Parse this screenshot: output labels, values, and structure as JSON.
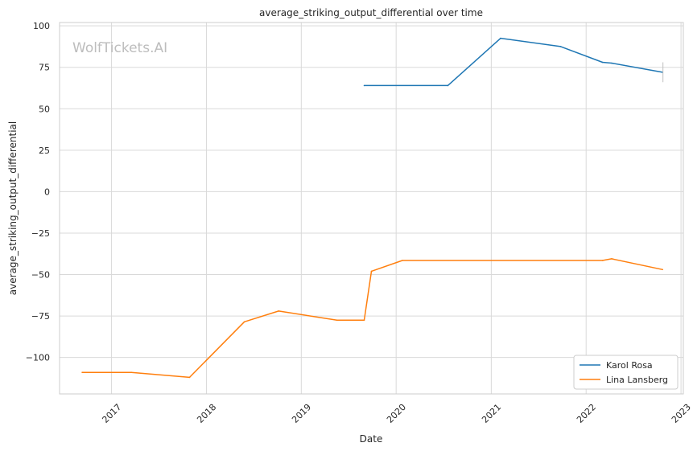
{
  "chart_data": {
    "type": "line",
    "title": "average_striking_output_differential over time",
    "xlabel": "Date",
    "ylabel": "average_striking_output_differential",
    "watermark": "WolfTickets.AI",
    "xlim": [
      "2016-06-15",
      "2023-01-10"
    ],
    "ylim": [
      -122,
      102
    ],
    "x_ticks": [
      {
        "label": "2017",
        "date": "2017-01-01"
      },
      {
        "label": "2018",
        "date": "2018-01-01"
      },
      {
        "label": "2019",
        "date": "2019-01-01"
      },
      {
        "label": "2020",
        "date": "2020-01-01"
      },
      {
        "label": "2021",
        "date": "2021-01-01"
      },
      {
        "label": "2022",
        "date": "2022-01-01"
      },
      {
        "label": "2023",
        "date": "2023-01-01"
      }
    ],
    "y_ticks": [
      {
        "label": "100",
        "value": 100
      },
      {
        "label": "75",
        "value": 75
      },
      {
        "label": "50",
        "value": 50
      },
      {
        "label": "25",
        "value": 25
      },
      {
        "label": "0",
        "value": 0
      },
      {
        "label": "−25",
        "value": -25
      },
      {
        "label": "−50",
        "value": -50
      },
      {
        "label": "−75",
        "value": -75
      },
      {
        "label": "−100",
        "value": -100
      }
    ],
    "grid": true,
    "legend_position": "bottom-right",
    "series": [
      {
        "name": "Karol Rosa",
        "color": "#1f77b4",
        "points": [
          {
            "x": "2019-08-31",
            "y": 64
          },
          {
            "x": "2020-07-18",
            "y": 64
          },
          {
            "x": "2021-02-06",
            "y": 92.5
          },
          {
            "x": "2021-09-25",
            "y": 87.5
          },
          {
            "x": "2022-03-05",
            "y": 78
          },
          {
            "x": "2022-04-09",
            "y": 77.5
          },
          {
            "x": "2022-10-22",
            "y": 72
          }
        ]
      },
      {
        "name": "Lina Lansberg",
        "color": "#ff7f0e",
        "points": [
          {
            "x": "2016-09-10",
            "y": -109
          },
          {
            "x": "2017-03-18",
            "y": -109
          },
          {
            "x": "2017-10-28",
            "y": -112
          },
          {
            "x": "2018-05-27",
            "y": -78.5
          },
          {
            "x": "2018-10-06",
            "y": -72
          },
          {
            "x": "2019-05-18",
            "y": -77.5
          },
          {
            "x": "2019-08-31",
            "y": -77.5
          },
          {
            "x": "2019-09-28",
            "y": -48
          },
          {
            "x": "2020-01-25",
            "y": -41.5
          },
          {
            "x": "2022-03-05",
            "y": -41.5
          },
          {
            "x": "2022-04-09",
            "y": -40.5
          },
          {
            "x": "2022-10-22",
            "y": -47
          }
        ]
      }
    ]
  }
}
